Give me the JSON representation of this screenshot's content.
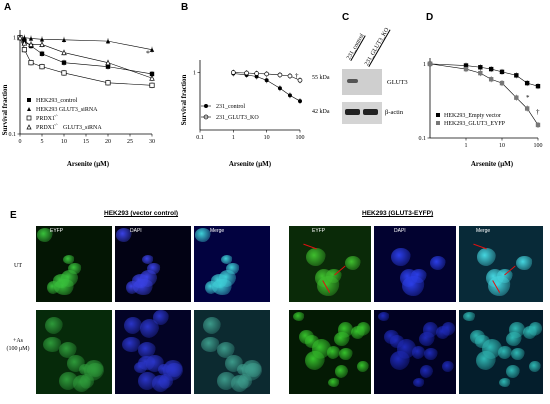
{
  "panels": {
    "A": {
      "label": "A",
      "chart_data": {
        "type": "line",
        "xlabel": "Arsenite (μM)",
        "ylabel": "Survival fraction",
        "x_ticks": [
          "0",
          "5",
          "10",
          "15",
          "20",
          "25",
          "30"
        ],
        "y_ticks": [
          "1",
          "0.1"
        ],
        "xlim": [
          0,
          30
        ],
        "ylim": [
          0.1,
          1.2
        ],
        "yscale": "log",
        "legend": "bottom-left",
        "series": [
          {
            "name": "HEK293_control",
            "marker": "filled-square",
            "x": [
              0,
              1,
              2.5,
              5,
              10,
              20,
              30
            ],
            "y": [
              1.0,
              0.93,
              0.82,
              0.68,
              0.55,
              0.5,
              0.42
            ]
          },
          {
            "name": "HEK293 GLUT3_siRNA",
            "marker": "filled-triangle",
            "x": [
              0,
              1,
              2.5,
              5,
              10,
              20,
              30
            ],
            "y": [
              1.0,
              1.0,
              0.98,
              0.96,
              0.95,
              0.92,
              0.75
            ]
          },
          {
            "name": "PRDX1",
            "marker": "open-square",
            "x": [
              0,
              1,
              2.5,
              5,
              10,
              20,
              30
            ],
            "y": [
              1.0,
              0.75,
              0.55,
              0.5,
              0.43,
              0.34,
              0.32
            ]
          },
          {
            "name": "PRDX1 GLUT3_siRNA",
            "marker": "open-triangle",
            "x": [
              0,
              1,
              2.5,
              5,
              10,
              20,
              30
            ],
            "y": [
              1.0,
              0.88,
              0.85,
              0.85,
              0.7,
              0.55,
              0.38
            ]
          }
        ]
      },
      "legend_labels": [
        "HEK293_control",
        "HEK293 GLUT3_siRNA",
        "PRDX1",
        "PRDX1",
        "GLUT3_siRNA"
      ],
      "superscripts": [
        "-/-",
        "-/-"
      ],
      "asterisk": "*"
    },
    "B": {
      "label": "B",
      "chart_data": {
        "type": "line",
        "xlabel": "Arsenite (μM)",
        "ylabel": "Survival fraction",
        "x_ticks": [
          "0.1",
          "1",
          "10",
          "100"
        ],
        "y_ticks": [
          "1"
        ],
        "xscale": "log",
        "yscale": "log",
        "xlim": [
          0.1,
          100
        ],
        "legend": "bottom-center",
        "series": [
          {
            "name": "231_control",
            "marker": "filled-circle",
            "x": [
              1,
              2.5,
              5,
              10,
              25,
              50,
              100
            ],
            "y": [
              0.98,
              0.95,
              0.92,
              0.85,
              0.72,
              0.62,
              0.55
            ]
          },
          {
            "name": "231_GLUT3_KO",
            "marker": "open-circle",
            "x": [
              1,
              2.5,
              5,
              10,
              25,
              50,
              100
            ],
            "y": [
              1.0,
              0.99,
              0.98,
              0.97,
              0.95,
              0.93,
              0.85
            ]
          }
        ]
      },
      "dagger": "†"
    },
    "C": {
      "label": "C",
      "lanes": [
        "231_control",
        "231_GLUT3_KO"
      ],
      "markers": [
        "55 kDa",
        "42 kDa"
      ],
      "bands": [
        "GLUT3",
        "β-actin"
      ]
    },
    "D": {
      "label": "D",
      "chart_data": {
        "type": "line",
        "xlabel": "Arsenite (μM)",
        "y_ticks": [
          "1",
          "0.1"
        ],
        "x_ticks": [
          "1",
          "10",
          "100"
        ],
        "xscale": "log",
        "yscale": "log",
        "legend": "bottom-left",
        "series": [
          {
            "name": "HEK293_Empty vector",
            "marker": "filled-square",
            "x": [
              0.1,
              1,
              2.5,
              5,
              10,
              25,
              50,
              100
            ],
            "y": [
              1.0,
              0.95,
              0.9,
              0.85,
              0.78,
              0.7,
              0.55,
              0.5
            ]
          },
          {
            "name": "HEK293_GLUT3_EYFP",
            "marker": "gray-square",
            "x": [
              0.1,
              1,
              2.5,
              5,
              10,
              25,
              50,
              100
            ],
            "y": [
              1.0,
              0.85,
              0.75,
              0.62,
              0.55,
              0.35,
              0.25,
              0.15
            ]
          }
        ]
      },
      "markers_sig": [
        "*",
        "†"
      ]
    },
    "E": {
      "label": "E",
      "groups": [
        "HEK293 (vector control)",
        "HEK293 (GLUT3-EYFP)"
      ],
      "channels": [
        "EYFP",
        "DAPI",
        "Merge"
      ],
      "rows": [
        "UT",
        "+As",
        "(100 μM)"
      ]
    }
  }
}
